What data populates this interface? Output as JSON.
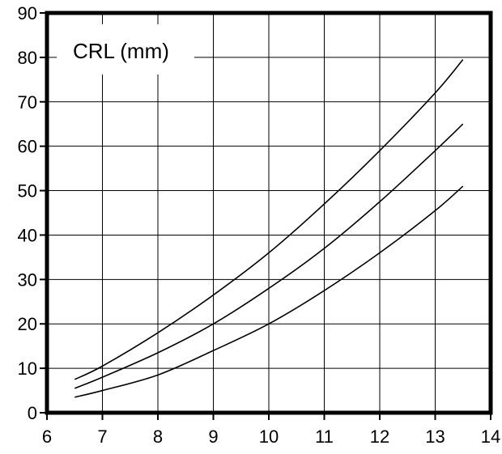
{
  "chart_data": {
    "type": "line",
    "title": "CRL (mm)",
    "xlabel": "",
    "ylabel": "",
    "xlim": [
      6,
      14
    ],
    "ylim": [
      0,
      90
    ],
    "x_ticks": [
      6,
      7,
      8,
      9,
      10,
      11,
      12,
      13,
      14
    ],
    "y_ticks": [
      0,
      10,
      20,
      30,
      40,
      50,
      60,
      70,
      80,
      90
    ],
    "grid": true,
    "legend": "none",
    "series": [
      {
        "x": [
          6.5,
          7,
          8,
          9,
          10,
          11,
          12,
          13,
          13.5
        ],
        "values": [
          7.5,
          10.5,
          18,
          26.5,
          36,
          47,
          59,
          72,
          79.5
        ]
      },
      {
        "x": [
          6.5,
          7,
          8,
          9,
          10,
          11,
          12,
          13,
          13.5
        ],
        "values": [
          5.5,
          8,
          13.5,
          20,
          28,
          37,
          47.5,
          59,
          65
        ]
      },
      {
        "x": [
          6.5,
          7,
          8,
          9,
          10,
          11,
          12,
          13,
          13.5
        ],
        "values": [
          3.5,
          5,
          8.5,
          14,
          20,
          27.5,
          36,
          45.5,
          51
        ]
      }
    ],
    "colors": {
      "line": "#000000",
      "grid": "#000000",
      "frame": "#000000",
      "background": "#ffffff"
    }
  }
}
